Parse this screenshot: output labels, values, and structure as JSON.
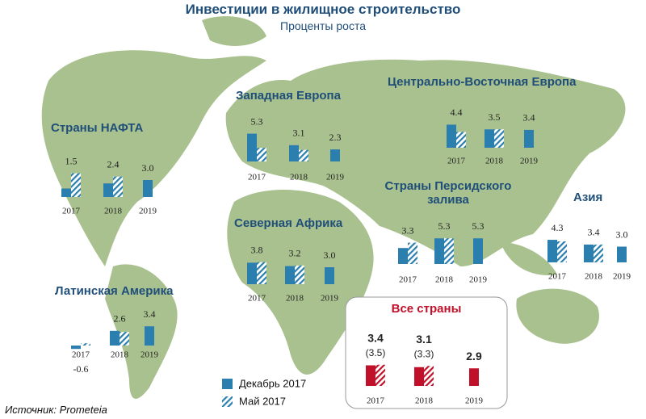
{
  "title": "Инвестиции в жилищное строительство",
  "subtitle": "Проценты роста",
  "source": "Источник: Prometeia",
  "chart_data": [
    {
      "type": "bar",
      "title": "Страны НАФТА",
      "categories": [
        "2017",
        "2018",
        "2019"
      ],
      "series": [
        {
          "name": "Декабрь 2017",
          "color": "#2b7fae",
          "values": [
            1.5,
            2.4,
            3.0
          ],
          "value_labels": [
            "1.5",
            "2.4",
            "3.0"
          ]
        },
        {
          "name": "Май 2017",
          "color": "#2b7fae",
          "pattern": "hatch",
          "values": [
            4.2,
            3.6,
            null
          ]
        }
      ]
    },
    {
      "type": "bar",
      "title": "Западная Европа",
      "categories": [
        "2017",
        "2018",
        "2019"
      ],
      "series": [
        {
          "name": "Декабрь 2017",
          "color": "#2b7fae",
          "values": [
            5.3,
            3.1,
            2.3
          ]
        },
        {
          "name": "Май 2017",
          "color": "#2b7fae",
          "pattern": "hatch",
          "values": [
            2.6,
            2.2,
            null
          ]
        }
      ]
    },
    {
      "type": "bar",
      "title": "Центрально-Восточная Европа",
      "categories": [
        "2017",
        "2018",
        "2019"
      ],
      "series": [
        {
          "name": "Декабрь 2017",
          "color": "#2b7fae",
          "values": [
            4.4,
            3.5,
            3.4
          ]
        },
        {
          "name": "Май 2017",
          "color": "#2b7fae",
          "pattern": "hatch",
          "values": [
            3.0,
            3.5,
            null
          ]
        }
      ]
    },
    {
      "type": "bar",
      "title": "Страны Персидского залива",
      "categories": [
        "2017",
        "2018",
        "2019"
      ],
      "series": [
        {
          "name": "Декабрь 2017",
          "color": "#2b7fae",
          "values": [
            3.3,
            5.3,
            5.3
          ]
        },
        {
          "name": "Май 2017",
          "color": "#2b7fae",
          "pattern": "hatch",
          "values": [
            4.4,
            5.3,
            null
          ]
        }
      ]
    },
    {
      "type": "bar",
      "title": "Азия",
      "categories": [
        "2017",
        "2018",
        "2019"
      ],
      "series": [
        {
          "name": "Декабрь 2017",
          "color": "#2b7fae",
          "values": [
            4.3,
            3.4,
            3.0
          ],
          "value_labels": [
            "4.3",
            "3.4",
            "3.0"
          ]
        },
        {
          "name": "Май 2017",
          "color": "#2b7fae",
          "pattern": "hatch",
          "values": [
            4.0,
            3.4,
            null
          ]
        }
      ]
    },
    {
      "type": "bar",
      "title": "Северная Африка",
      "categories": [
        "2017",
        "2018",
        "2019"
      ],
      "series": [
        {
          "name": "Декабрь 2017",
          "color": "#2b7fae",
          "values": [
            3.8,
            3.2,
            3.0
          ],
          "value_labels": [
            "3.8",
            "3.2",
            "3.0"
          ]
        },
        {
          "name": "Май 2017",
          "color": "#2b7fae",
          "pattern": "hatch",
          "values": [
            3.9,
            3.3,
            null
          ]
        }
      ]
    },
    {
      "type": "bar",
      "title": "Латинская Америка",
      "categories": [
        "2017",
        "2018",
        "2019"
      ],
      "series": [
        {
          "name": "Декабрь 2017",
          "color": "#2b7fae",
          "values": [
            -0.6,
            2.6,
            3.4
          ]
        },
        {
          "name": "Май 2017",
          "color": "#2b7fae",
          "pattern": "hatch",
          "values": [
            0.4,
            2.4,
            null
          ]
        }
      ]
    },
    {
      "type": "bar",
      "title": "Все страны",
      "categories": [
        "2017",
        "2018",
        "2019"
      ],
      "series": [
        {
          "name": "Декабрь 2017",
          "color": "#c0102a",
          "values": [
            3.4,
            3.1,
            2.9
          ]
        },
        {
          "name": "Май 2017",
          "color": "#c0102a",
          "pattern": "hatch",
          "values": [
            3.5,
            3.3,
            null
          ],
          "value_labels": [
            "(3.5)",
            "(3.3)",
            null
          ]
        }
      ]
    }
  ]
}
